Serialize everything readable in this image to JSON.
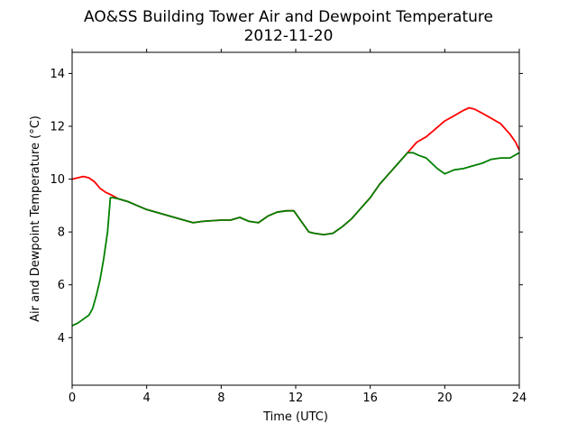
{
  "chart_data": {
    "type": "line",
    "title": "AO&SS Building Tower Air and Dewpoint Temperature",
    "subtitle": "2012-11-20",
    "xlabel": "Time (UTC)",
    "ylabel": "Air and Dewpoint Temperature (°C)",
    "xlim": [
      0,
      24
    ],
    "ylim": [
      2.2,
      14.8
    ],
    "xticks": [
      0,
      4,
      8,
      12,
      16,
      20,
      24
    ],
    "yticks": [
      4,
      6,
      8,
      10,
      12,
      14
    ],
    "grid": false,
    "colors": {
      "air": "#ff0000",
      "dewpoint": "#008000"
    },
    "series": [
      {
        "key": "air",
        "x": [
          0,
          0.3,
          0.6,
          0.9,
          1.2,
          1.5,
          1.8,
          2.1,
          2.5,
          3,
          3.5,
          4,
          5,
          6,
          6.5,
          7,
          8,
          8.5,
          9,
          9.5,
          10,
          10.5,
          11,
          11.5,
          11.9,
          12.3,
          12.7,
          13,
          13.5,
          14,
          14.5,
          15,
          15.5,
          16,
          16.5,
          17,
          17.5,
          18,
          18.5,
          19,
          19.5,
          20,
          20.5,
          21,
          21.3,
          21.6,
          22,
          22.5,
          23,
          23.5,
          23.8,
          24
        ],
        "y": [
          10.0,
          10.05,
          10.1,
          10.05,
          9.9,
          9.65,
          9.5,
          9.4,
          9.25,
          9.15,
          9.0,
          8.85,
          8.65,
          8.45,
          8.35,
          8.4,
          8.45,
          8.45,
          8.55,
          8.4,
          8.35,
          8.6,
          8.75,
          8.8,
          8.8,
          8.4,
          8.0,
          7.95,
          7.9,
          7.95,
          8.2,
          8.5,
          8.9,
          9.3,
          9.8,
          10.2,
          10.6,
          11.0,
          11.4,
          11.6,
          11.9,
          12.2,
          12.4,
          12.6,
          12.7,
          12.65,
          12.5,
          12.3,
          12.1,
          11.7,
          11.4,
          11.1
        ]
      },
      {
        "key": "dewpoint",
        "x": [
          0,
          0.3,
          0.6,
          0.9,
          1.1,
          1.3,
          1.5,
          1.7,
          1.9,
          2.05,
          2.2,
          2.5,
          3,
          3.5,
          4,
          5,
          6,
          6.5,
          7,
          8,
          8.5,
          9,
          9.5,
          10,
          10.5,
          11,
          11.5,
          11.9,
          12.3,
          12.7,
          13,
          13.5,
          14,
          14.5,
          15,
          15.5,
          16,
          16.5,
          17,
          17.5,
          18,
          18.3,
          18.6,
          19,
          19.3,
          19.6,
          20,
          20.5,
          21,
          21.5,
          22,
          22.5,
          23,
          23.5,
          24
        ],
        "y": [
          4.45,
          4.55,
          4.7,
          4.85,
          5.1,
          5.6,
          6.2,
          7.0,
          8.0,
          9.3,
          9.3,
          9.25,
          9.15,
          9.0,
          8.85,
          8.65,
          8.45,
          8.35,
          8.4,
          8.45,
          8.45,
          8.55,
          8.4,
          8.35,
          8.6,
          8.75,
          8.8,
          8.8,
          8.4,
          8.0,
          7.95,
          7.9,
          7.95,
          8.2,
          8.5,
          8.9,
          9.3,
          9.8,
          10.2,
          10.6,
          11.0,
          11.0,
          10.9,
          10.8,
          10.6,
          10.4,
          10.2,
          10.35,
          10.4,
          10.5,
          10.6,
          10.75,
          10.8,
          10.8,
          11.0
        ]
      }
    ]
  }
}
